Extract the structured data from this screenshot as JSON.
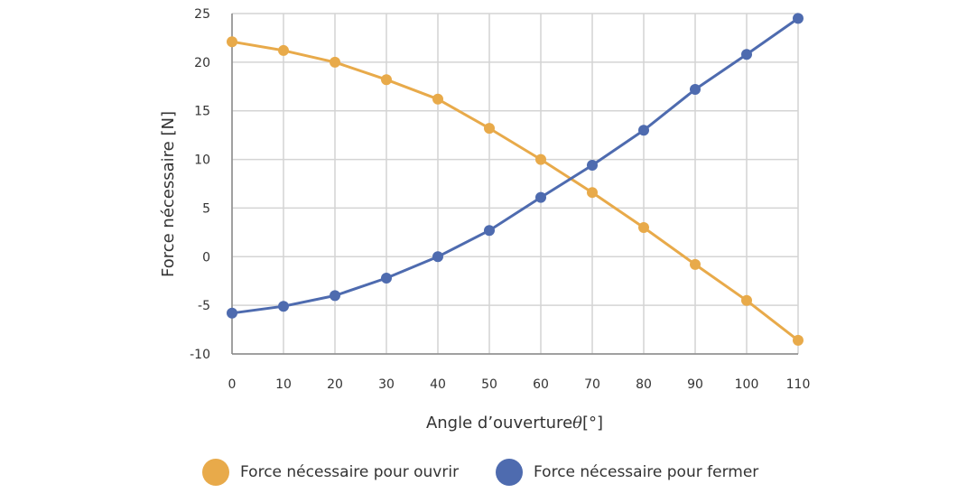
{
  "chart_data": {
    "type": "line",
    "x": [
      0,
      10,
      20,
      30,
      40,
      50,
      60,
      70,
      80,
      90,
      100,
      110
    ],
    "series": [
      {
        "name": "Force nécessaire pour ouvrir",
        "color": "#E8AA4A",
        "values": [
          22.1,
          21.2,
          20.0,
          18.2,
          16.2,
          13.2,
          10.0,
          6.6,
          3.0,
          -0.8,
          -4.5,
          -8.6
        ]
      },
      {
        "name": "Force nécessaire pour fermer",
        "color": "#4E6BAF",
        "values": [
          -5.8,
          -5.1,
          -4.0,
          -2.2,
          0.0,
          2.7,
          6.1,
          9.4,
          13.0,
          17.2,
          20.8,
          24.5
        ]
      }
    ],
    "xlabel": "Angle d’ouverture",
    "xlabel_symbol": "θ",
    "xlabel_unit": "[°]",
    "ylabel": "Force nécessaire [N]",
    "xlim": [
      0,
      110
    ],
    "ylim": [
      -10,
      25
    ],
    "xticks": [
      0,
      10,
      20,
      30,
      40,
      50,
      60,
      70,
      80,
      90,
      100,
      110
    ],
    "yticks": [
      -10,
      -5,
      0,
      5,
      10,
      15,
      20,
      25
    ],
    "grid": true,
    "legend_position": "bottom"
  }
}
